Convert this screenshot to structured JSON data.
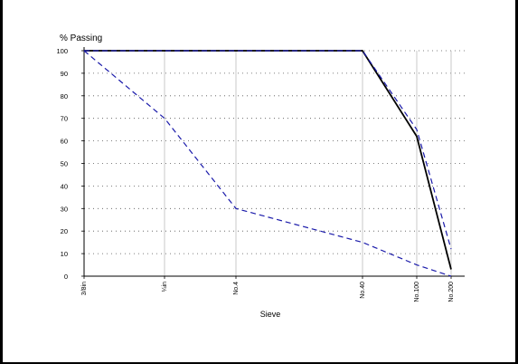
{
  "chart_data": {
    "type": "line",
    "ylabel": "% Passing",
    "xlabel": "Sieve",
    "ylim": [
      0,
      100
    ],
    "y_ticks": [
      0,
      10,
      20,
      30,
      40,
      50,
      60,
      70,
      80,
      90,
      100
    ],
    "categories": [
      "3/8in",
      "¼in",
      "No.4",
      "No.40",
      "No.100",
      "No.200"
    ],
    "grid": true,
    "series": [
      {
        "values": [
          100,
          100,
          100,
          100,
          62,
          3
        ],
        "color": "#000000",
        "style": "solid"
      },
      {
        "values": [
          100,
          100,
          100,
          100,
          65,
          12
        ],
        "color": "#1a1aaa",
        "style": "dashed"
      },
      {
        "values": [
          100,
          70,
          30,
          15,
          5,
          0
        ],
        "color": "#1a1aaa",
        "style": "dashed"
      }
    ]
  }
}
